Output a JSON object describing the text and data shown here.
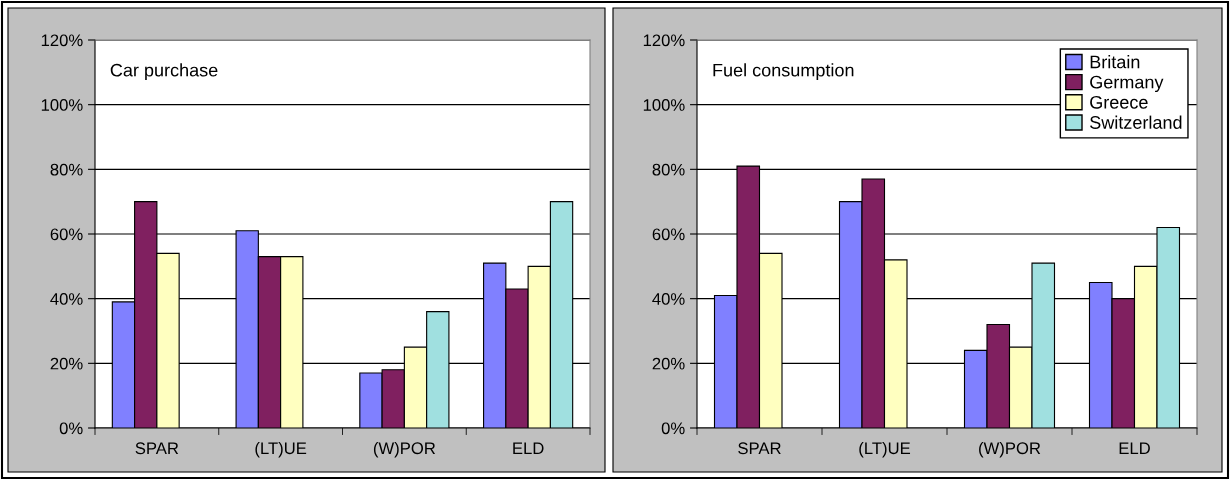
{
  "chart_data": [
    {
      "type": "bar",
      "title": "Car purchase",
      "categories": [
        "SPAR",
        "(LT)UE",
        "(W)POR",
        "ELD"
      ],
      "series": [
        {
          "color": "#8080ff",
          "values": [
            39,
            61,
            17,
            51
          ]
        },
        {
          "color": "#802060",
          "values": [
            70,
            53,
            18,
            43
          ]
        },
        {
          "color": "#ffffc0",
          "values": [
            54,
            53,
            25,
            50
          ]
        },
        {
          "color": "#a0e0e0",
          "values": [
            null,
            null,
            36,
            70
          ]
        }
      ],
      "ylim": [
        0,
        120
      ],
      "yticks": [
        {
          "value": 0,
          "label": "0%"
        },
        {
          "value": 20,
          "label": "20%"
        },
        {
          "value": 40,
          "label": "40%"
        },
        {
          "value": 60,
          "label": "60%"
        },
        {
          "value": 80,
          "label": "80%"
        },
        {
          "value": 100,
          "label": "100%"
        },
        {
          "value": 120,
          "label": "120%"
        }
      ],
      "grid": "y",
      "legend": false
    },
    {
      "type": "bar",
      "title": "Fuel consumption",
      "categories": [
        "SPAR",
        "(LT)UE",
        "(W)POR",
        "ELD"
      ],
      "series": [
        {
          "name": "Britain",
          "color": "#8080ff",
          "values": [
            41,
            70,
            24,
            45
          ]
        },
        {
          "name": "Germany",
          "color": "#802060",
          "values": [
            81,
            77,
            32,
            40
          ]
        },
        {
          "name": "Greece",
          "color": "#ffffc0",
          "values": [
            54,
            52,
            25,
            50
          ]
        },
        {
          "name": "Switzerland",
          "color": "#a0e0e0",
          "values": [
            null,
            null,
            51,
            62
          ]
        }
      ],
      "ylim": [
        0,
        120
      ],
      "yticks": [
        {
          "value": 0,
          "label": "0%"
        },
        {
          "value": 20,
          "label": "20%"
        },
        {
          "value": 40,
          "label": "40%"
        },
        {
          "value": 60,
          "label": "60%"
        },
        {
          "value": 80,
          "label": "80%"
        },
        {
          "value": 100,
          "label": "100%"
        },
        {
          "value": 120,
          "label": "120%"
        }
      ],
      "grid": "y",
      "legend": "top right"
    }
  ]
}
